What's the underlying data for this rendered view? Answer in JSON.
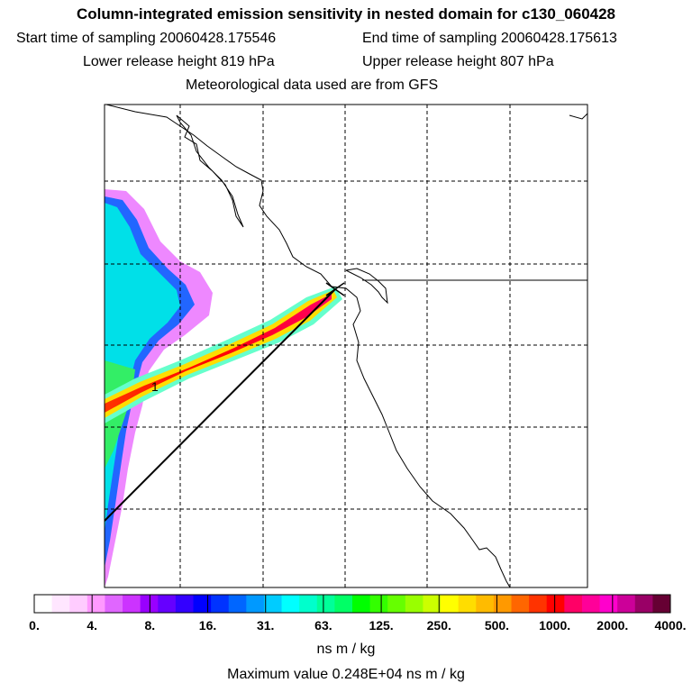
{
  "header": {
    "title": "Column-integrated emission sensitivity in nested domain for c130_060428",
    "start_time": "Start time of sampling 20060428.175546",
    "end_time": "End time of sampling 20060428.175613",
    "lower_height": "Lower release height  819 hPa",
    "upper_height": "Upper release height  807 hPa",
    "met_data": "Meteorological data used are from GFS"
  },
  "map": {
    "plume_label": "1"
  },
  "colorbar": {
    "ticks": [
      "0.",
      "4.",
      "8.",
      "16.",
      "31.",
      "63.",
      "125.",
      "250.",
      "500.",
      "1000.",
      "2000.",
      "4000."
    ],
    "colors": [
      "#ffffff",
      "#ffe6ff",
      "#ffccff",
      "#ff99ff",
      "#e066ff",
      "#cc33ff",
      "#9900ff",
      "#6600ff",
      "#3300ff",
      "#0000ff",
      "#0033ff",
      "#0066ff",
      "#0099ff",
      "#00ccff",
      "#00ffff",
      "#00ffcc",
      "#00ff99",
      "#00ff66",
      "#00ff00",
      "#33ff00",
      "#66ff00",
      "#99ff00",
      "#ccff00",
      "#ffff00",
      "#ffdd00",
      "#ffbb00",
      "#ff9900",
      "#ff6600",
      "#ff3300",
      "#ff0000",
      "#ff0066",
      "#ff0099",
      "#ff00cc",
      "#cc0099",
      "#990066",
      "#660033"
    ],
    "units": "ns m / kg"
  },
  "footer": {
    "max_value": "Maximum value  0.248E+04 ns m / kg"
  }
}
